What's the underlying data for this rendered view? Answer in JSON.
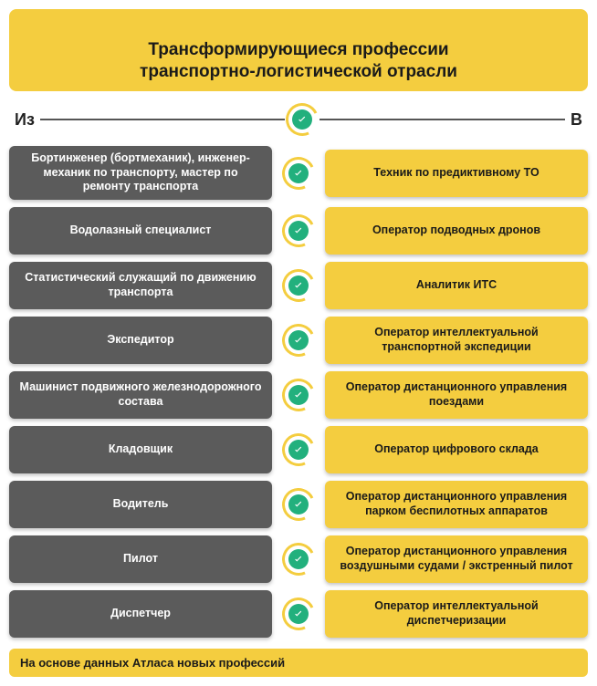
{
  "colors": {
    "yellow": "#f4cd3f",
    "gray": "#5b5b5b",
    "ring": "#f4cd3f",
    "badge": "#22b07d",
    "check": "#ffffff",
    "title_text": "#1a1a1a",
    "from_text": "#ffffff",
    "to_text": "#1a1a1a",
    "header_text": "#222222",
    "footer_text": "#1a1a1a"
  },
  "typography": {
    "title_fontsize": 19,
    "header_fontsize": 18,
    "cell_from_fontsize": 12.5,
    "cell_to_fontsize": 12.5,
    "footer_fontsize": 13
  },
  "layout": {
    "row_min_height": 52,
    "row_gap": 8,
    "cell_radius": 6
  },
  "title": "Трансформирующиеся профессии\nтранспортно-логистической отрасли",
  "header": {
    "from": "Из",
    "to": "В"
  },
  "rows": [
    {
      "from": "Бортинженер (бортмеханик), инженер-механик по транспорту, мастер по ремонту транспорта",
      "to": "Техник по предиктивному ТО"
    },
    {
      "from": "Водолазный специалист",
      "to": "Оператор подводных дронов"
    },
    {
      "from": "Статистический служащий по движению транспорта",
      "to": "Аналитик ИТС"
    },
    {
      "from": "Экспедитор",
      "to": "Оператор интеллектуальной транспортной экспедиции"
    },
    {
      "from": "Машинист подвижного железнодорожного состава",
      "to": "Оператор дистанционного управления поездами"
    },
    {
      "from": "Кладовщик",
      "to": "Оператор цифрового склада"
    },
    {
      "from": "Водитель",
      "to": "Оператор дистанционного управления парком беспилотных аппаратов"
    },
    {
      "from": "Пилот",
      "to": "Оператор дистанционного управления воздушными судами / экстренный пилот"
    },
    {
      "from": "Диспетчер",
      "to": "Оператор интеллектуальной диспетчеризации"
    }
  ],
  "footer": "На основе данных Атласа новых профессий"
}
